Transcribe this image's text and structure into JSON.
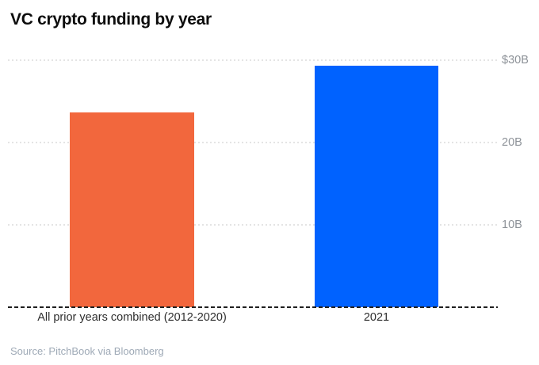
{
  "page": {
    "title": "VC crypto funding by year",
    "source": "Source: PitchBook via Bloomberg"
  },
  "colors": {
    "prior_years_bar": "#f2673d",
    "year_2021_bar": "#0062ff",
    "gridline": "#e4e4e4",
    "baseline": "#1f1f1f",
    "ytick_text": "#8d9298",
    "xtick_text": "#2e2e2e",
    "source_text": "#9ea9b6",
    "title_text": "#0d0d0d"
  },
  "chart_data": {
    "type": "bar",
    "title": "VC crypto funding by year",
    "categories": [
      "All prior years combined (2012-2020)",
      "2021"
    ],
    "values": [
      23.7,
      29.3
    ],
    "unit": "billions USD",
    "bar_colors": [
      "#f2673d",
      "#0062ff"
    ],
    "xlabel": "",
    "ylabel": "",
    "ylim": [
      0,
      31
    ],
    "yticks": [
      {
        "value": 10,
        "label": "10B"
      },
      {
        "value": 20,
        "label": "20B"
      },
      {
        "value": 30,
        "label": "$30B"
      }
    ],
    "ytick_side": "right",
    "grid": "horizontal-dotted",
    "legend": "none",
    "source": "Source: PitchBook via Bloomberg"
  }
}
